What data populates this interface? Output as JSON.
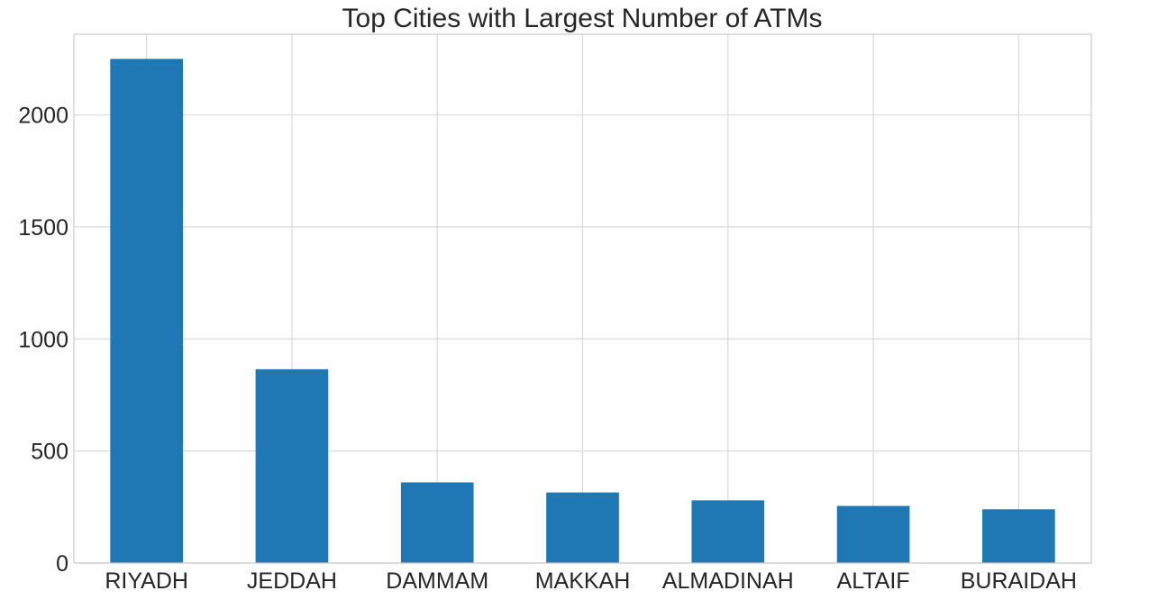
{
  "chart_data": {
    "type": "bar",
    "title": "Top Cities with Largest Number of ATMs",
    "xlabel": "",
    "ylabel": "",
    "categories": [
      "RIYADH",
      "JEDDAH",
      "DAMMAM",
      "MAKKAH",
      "ALMADINAH",
      "ALTAIF",
      "BURAIDAH"
    ],
    "values": [
      2250,
      865,
      360,
      315,
      280,
      255,
      240
    ],
    "ylim": [
      0,
      2360
    ],
    "yticks": [
      0,
      500,
      1000,
      1500,
      2000
    ],
    "grid": true,
    "legend": "none",
    "bar_color": "#1f77b4"
  }
}
